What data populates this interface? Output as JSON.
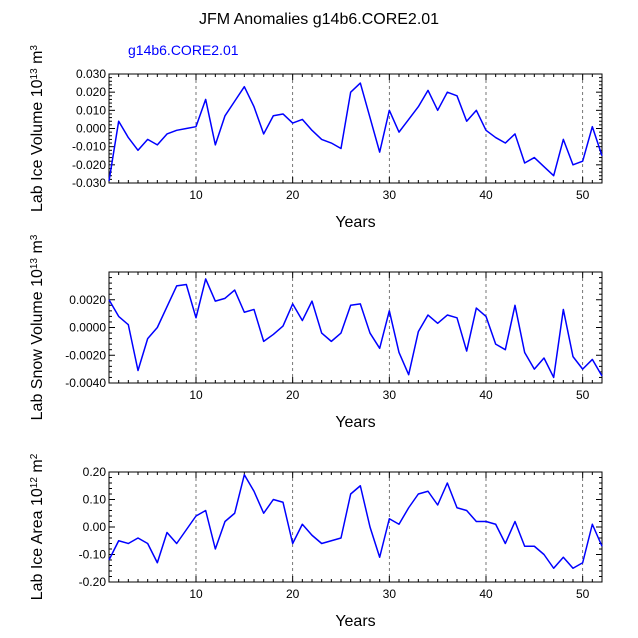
{
  "title": "JFM Anomalies g14b6.CORE2.01",
  "legend_label": "g14b6.CORE2.01",
  "colors": {
    "series": "#0000ff",
    "axis": "#000000",
    "refline": "#555555"
  },
  "chart_data": [
    {
      "type": "line",
      "ylabel_text": "Lab Ice Volume 10",
      "ylabel_exp": "13",
      "ylabel_unit": "m",
      "ylabel_unit_exp": "3",
      "xlabel": "Years",
      "xlim": [
        1,
        52
      ],
      "ylim": [
        -0.03,
        0.03
      ],
      "yticks": [
        -0.03,
        -0.02,
        -0.01,
        0.0,
        0.01,
        0.02,
        0.03
      ],
      "ytick_labels": [
        "-0.030",
        "-0.020",
        "-0.010",
        "0.000",
        "0.010",
        "0.020",
        "0.030"
      ],
      "xticks": [
        10,
        20,
        30,
        40,
        50
      ],
      "xtick_labels": [
        "10",
        "20",
        "30",
        "40",
        "50"
      ],
      "reference_lines_x": [
        10,
        20,
        30,
        40,
        50
      ],
      "x": [
        1,
        2,
        3,
        4,
        5,
        6,
        7,
        8,
        9,
        10,
        11,
        12,
        13,
        14,
        15,
        16,
        17,
        18,
        19,
        20,
        21,
        22,
        23,
        24,
        25,
        26,
        27,
        28,
        29,
        30,
        31,
        32,
        33,
        34,
        35,
        36,
        37,
        38,
        39,
        40,
        41,
        42,
        43,
        44,
        45,
        46,
        47,
        48,
        49,
        50,
        51,
        52
      ],
      "series": [
        {
          "name": "g14b6.CORE2.01",
          "values": [
            -0.029,
            0.004,
            -0.005,
            -0.012,
            -0.006,
            -0.009,
            -0.003,
            -0.001,
            0.0,
            0.001,
            0.016,
            -0.009,
            0.007,
            0.015,
            0.023,
            0.012,
            -0.003,
            0.007,
            0.008,
            0.003,
            0.005,
            -0.001,
            -0.006,
            -0.008,
            -0.011,
            0.02,
            0.025,
            0.006,
            -0.013,
            0.01,
            -0.002,
            0.005,
            0.012,
            0.021,
            0.01,
            0.02,
            0.018,
            0.004,
            0.01,
            -0.001,
            -0.005,
            -0.008,
            -0.003,
            -0.019,
            -0.016,
            -0.021,
            -0.026,
            -0.006,
            -0.02,
            -0.018,
            0.001,
            -0.015
          ]
        }
      ]
    },
    {
      "type": "line",
      "ylabel_text": "Lab Snow Volume 10",
      "ylabel_exp": "13",
      "ylabel_unit": "m",
      "ylabel_unit_exp": "3",
      "xlabel": "Years",
      "xlim": [
        1,
        52
      ],
      "ylim": [
        -0.004,
        0.004
      ],
      "yticks": [
        -0.004,
        -0.002,
        0.0,
        0.002
      ],
      "ytick_labels": [
        "-0.0040",
        "-0.0020",
        "0.0000",
        "0.0020"
      ],
      "xticks": [
        10,
        20,
        30,
        40,
        50
      ],
      "xtick_labels": [
        "10",
        "20",
        "30",
        "40",
        "50"
      ],
      "reference_lines_x": [
        10,
        20,
        30,
        40,
        50
      ],
      "x": [
        1,
        2,
        3,
        4,
        5,
        6,
        7,
        8,
        9,
        10,
        11,
        12,
        13,
        14,
        15,
        16,
        17,
        18,
        19,
        20,
        21,
        22,
        23,
        24,
        25,
        26,
        27,
        28,
        29,
        30,
        31,
        32,
        33,
        34,
        35,
        36,
        37,
        38,
        39,
        40,
        41,
        42,
        43,
        44,
        45,
        46,
        47,
        48,
        49,
        50,
        51,
        52
      ],
      "series": [
        {
          "name": "g14b6.CORE2.01",
          "values": [
            0.002,
            0.0008,
            0.0002,
            -0.0031,
            -0.0008,
            0.0,
            0.0015,
            0.003,
            0.0031,
            0.0007,
            0.0035,
            0.0019,
            0.0021,
            0.0027,
            0.0011,
            0.0013,
            -0.001,
            -0.0005,
            0.0001,
            0.0017,
            0.0005,
            0.0019,
            -0.0004,
            -0.001,
            -0.0004,
            0.0016,
            0.0017,
            -0.0004,
            -0.0015,
            0.0012,
            -0.0018,
            -0.0034,
            -0.0003,
            0.0009,
            0.0003,
            0.0009,
            0.0007,
            -0.0017,
            0.0014,
            0.0008,
            -0.0012,
            -0.0016,
            0.0016,
            -0.0018,
            -0.003,
            -0.0022,
            -0.0036,
            0.0013,
            -0.0021,
            -0.003,
            -0.0023,
            -0.0035
          ]
        }
      ]
    },
    {
      "type": "line",
      "ylabel_text": "Lab Ice Area 10",
      "ylabel_exp": "12",
      "ylabel_unit": "m",
      "ylabel_unit_exp": "2",
      "xlabel": "Years",
      "xlim": [
        1,
        52
      ],
      "ylim": [
        -0.2,
        0.2
      ],
      "yticks": [
        -0.2,
        -0.1,
        0.0,
        0.1,
        0.2
      ],
      "ytick_labels": [
        "-0.20",
        "-0.10",
        "0.00",
        "0.10",
        "0.20"
      ],
      "xticks": [
        10,
        20,
        30,
        40,
        50
      ],
      "xtick_labels": [
        "10",
        "20",
        "30",
        "40",
        "50"
      ],
      "reference_lines_x": [
        10,
        20,
        30,
        40,
        50
      ],
      "x": [
        1,
        2,
        3,
        4,
        5,
        6,
        7,
        8,
        9,
        10,
        11,
        12,
        13,
        14,
        15,
        16,
        17,
        18,
        19,
        20,
        21,
        22,
        23,
        24,
        25,
        26,
        27,
        28,
        29,
        30,
        31,
        32,
        33,
        34,
        35,
        36,
        37,
        38,
        39,
        40,
        41,
        42,
        43,
        44,
        45,
        46,
        47,
        48,
        49,
        50,
        51,
        52
      ],
      "series": [
        {
          "name": "g14b6.CORE2.01",
          "values": [
            -0.12,
            -0.05,
            -0.06,
            -0.04,
            -0.06,
            -0.13,
            -0.02,
            -0.06,
            -0.01,
            0.04,
            0.06,
            -0.08,
            0.02,
            0.05,
            0.19,
            0.13,
            0.05,
            0.1,
            0.09,
            -0.06,
            0.01,
            -0.03,
            -0.06,
            -0.05,
            -0.04,
            0.12,
            0.15,
            0.0,
            -0.11,
            0.03,
            0.01,
            0.07,
            0.12,
            0.13,
            0.08,
            0.16,
            0.07,
            0.06,
            0.02,
            0.02,
            0.01,
            -0.06,
            0.02,
            -0.07,
            -0.07,
            -0.1,
            -0.15,
            -0.11,
            -0.15,
            -0.13,
            0.01,
            -0.07
          ]
        }
      ]
    }
  ]
}
